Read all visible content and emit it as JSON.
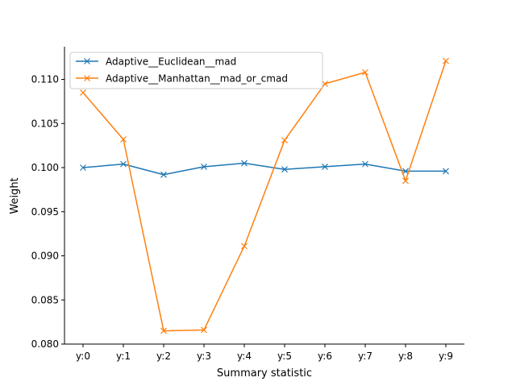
{
  "chart_data": {
    "type": "line",
    "title": "",
    "xlabel": "Summary statistic",
    "ylabel": "Weight",
    "categories": [
      "y:0",
      "y:1",
      "y:2",
      "y:3",
      "y:4",
      "y:5",
      "y:6",
      "y:7",
      "y:8",
      "y:9"
    ],
    "ylim": [
      0.08,
      0.1137
    ],
    "yticks": [
      "0.080",
      "0.085",
      "0.090",
      "0.095",
      "0.100",
      "0.105",
      "0.110"
    ],
    "grid": false,
    "legend_position": "upper-left",
    "marker": "x",
    "series": [
      {
        "name": "Adaptive__Euclidean__mad",
        "color": "#1f77b4",
        "values": [
          0.1,
          0.1004,
          0.0992,
          0.1001,
          0.1005,
          0.0998,
          0.1001,
          0.1004,
          0.0996,
          0.0996
        ]
      },
      {
        "name": "Adaptive__Manhattan__mad_or_cmad",
        "color": "#ff7f0e",
        "values": [
          0.1085,
          0.1032,
          0.0815,
          0.0816,
          0.0911,
          0.1031,
          0.1095,
          0.1108,
          0.0985,
          0.1121
        ]
      }
    ]
  }
}
